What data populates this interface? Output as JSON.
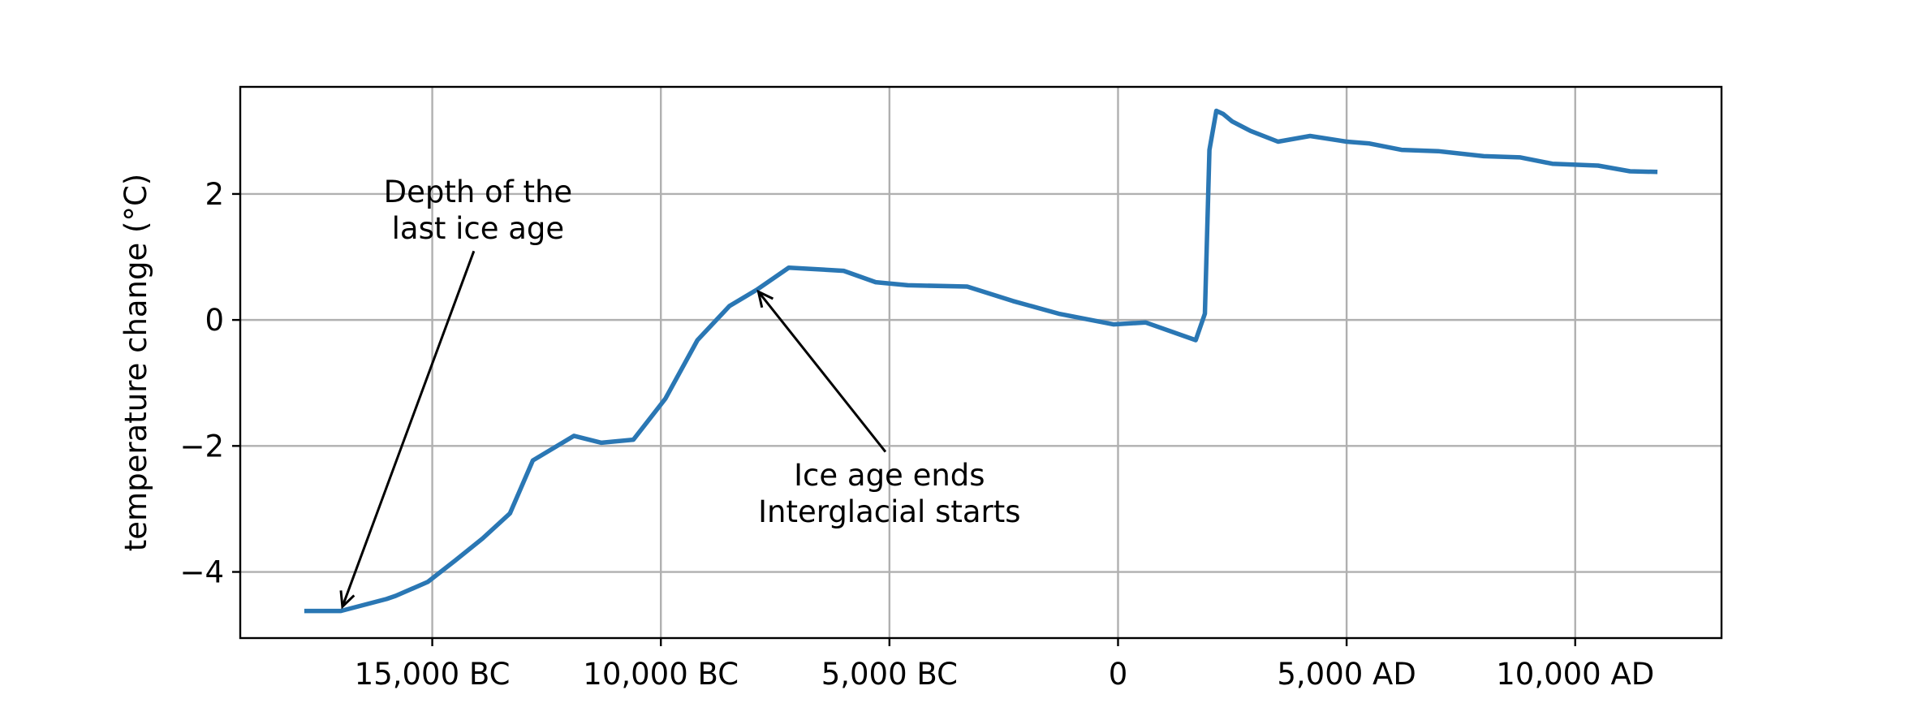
{
  "chart_data": {
    "type": "line",
    "title": "",
    "xlabel": "",
    "ylabel": "temperature change (°C)",
    "xlim": [
      -19200,
      13200
    ],
    "ylim": [
      -5.05,
      3.7
    ],
    "grid": true,
    "colors": {
      "line": "#2a77b4",
      "grid": "#b0b0b0",
      "axes": "#000000"
    },
    "x_ticks": [
      {
        "value": -15000,
        "label": "15,000 BC"
      },
      {
        "value": -10000,
        "label": "10,000 BC"
      },
      {
        "value": -5000,
        "label": "5,000 BC"
      },
      {
        "value": 0,
        "label": "0"
      },
      {
        "value": 5000,
        "label": "5,000 AD"
      },
      {
        "value": 10000,
        "label": "10,000 AD"
      }
    ],
    "y_ticks": [
      {
        "value": 2,
        "label": "2"
      },
      {
        "value": 0,
        "label": "0"
      },
      {
        "value": -2,
        "label": "−2"
      },
      {
        "value": -4,
        "label": "−4"
      }
    ],
    "series": [
      {
        "x": [
          -17800,
          -17000,
          -16000,
          -15800,
          -15100,
          -14500,
          -13900,
          -13300,
          -12800,
          -11900,
          -11300,
          -10600,
          -9900,
          -9200,
          -8500,
          -7900,
          -7200,
          -6000,
          -5300,
          -4600,
          -3300,
          -2300,
          -1300,
          -100,
          600,
          1700,
          1900,
          2000,
          2150,
          2300,
          2500,
          2900,
          3500,
          4200,
          5000,
          5500,
          6200,
          7000,
          8000,
          8800,
          9500,
          10500,
          11200,
          11800
        ],
        "y": [
          -4.62,
          -4.62,
          -4.43,
          -4.38,
          -4.16,
          -3.82,
          -3.47,
          -3.07,
          -2.23,
          -1.84,
          -1.95,
          -1.9,
          -1.25,
          -0.32,
          0.22,
          0.48,
          0.83,
          0.78,
          0.6,
          0.55,
          0.53,
          0.3,
          0.1,
          -0.07,
          -0.04,
          -0.32,
          0.1,
          2.7,
          3.32,
          3.27,
          3.15,
          3.0,
          2.83,
          2.92,
          2.83,
          2.8,
          2.7,
          2.68,
          2.6,
          2.58,
          2.48,
          2.45,
          2.36,
          2.35
        ]
      }
    ],
    "annotations": [
      {
        "lines": [
          "Depth of the",
          "last ice age"
        ],
        "text_x": -14000,
        "text_y": 1.75,
        "arrow_to": [
          -17000,
          -4.62
        ]
      },
      {
        "lines": [
          "Ice age ends",
          "Interglacial starts"
        ],
        "text_x": -5000,
        "text_y": -2.75,
        "arrow_to": [
          -7900,
          0.48
        ]
      }
    ]
  }
}
